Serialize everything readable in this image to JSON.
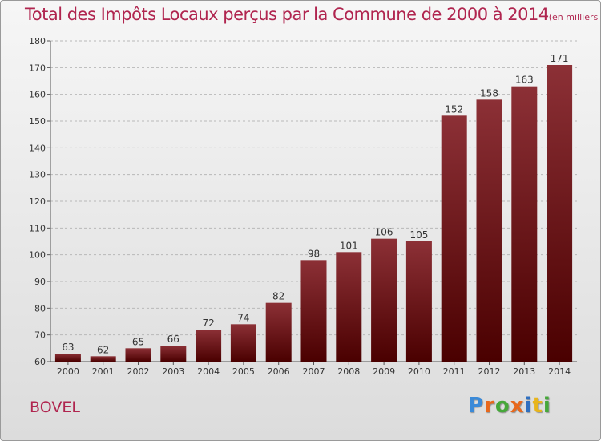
{
  "title": "Total des Impôts Locaux perçus par la Commune de 2000 à 2014",
  "unit": "(en milliers d'€)",
  "commune": "BOVEL",
  "logo": {
    "letters": [
      "P",
      "r",
      "o",
      "x",
      "i",
      "t",
      "i"
    ],
    "colors": [
      "#3b8ad8",
      "#e8681c",
      "#46a83a",
      "#e8681c",
      "#2f6fc0",
      "#e8b51c",
      "#46a83a"
    ]
  },
  "colors": {
    "bar_top": "#8c3036",
    "bar_bottom": "#4a0000",
    "title": "#b0254f"
  },
  "chart_data": {
    "type": "bar",
    "categories": [
      "2000",
      "2001",
      "2002",
      "2003",
      "2004",
      "2005",
      "2006",
      "2007",
      "2008",
      "2009",
      "2010",
      "2011",
      "2012",
      "2013",
      "2014"
    ],
    "values": [
      63,
      62,
      65,
      66,
      72,
      74,
      82,
      98,
      101,
      106,
      105,
      152,
      158,
      163,
      171
    ],
    "ylim": [
      60,
      180
    ],
    "yticks": [
      60,
      70,
      80,
      90,
      100,
      110,
      120,
      130,
      140,
      150,
      160,
      170,
      180
    ],
    "grid": true
  }
}
